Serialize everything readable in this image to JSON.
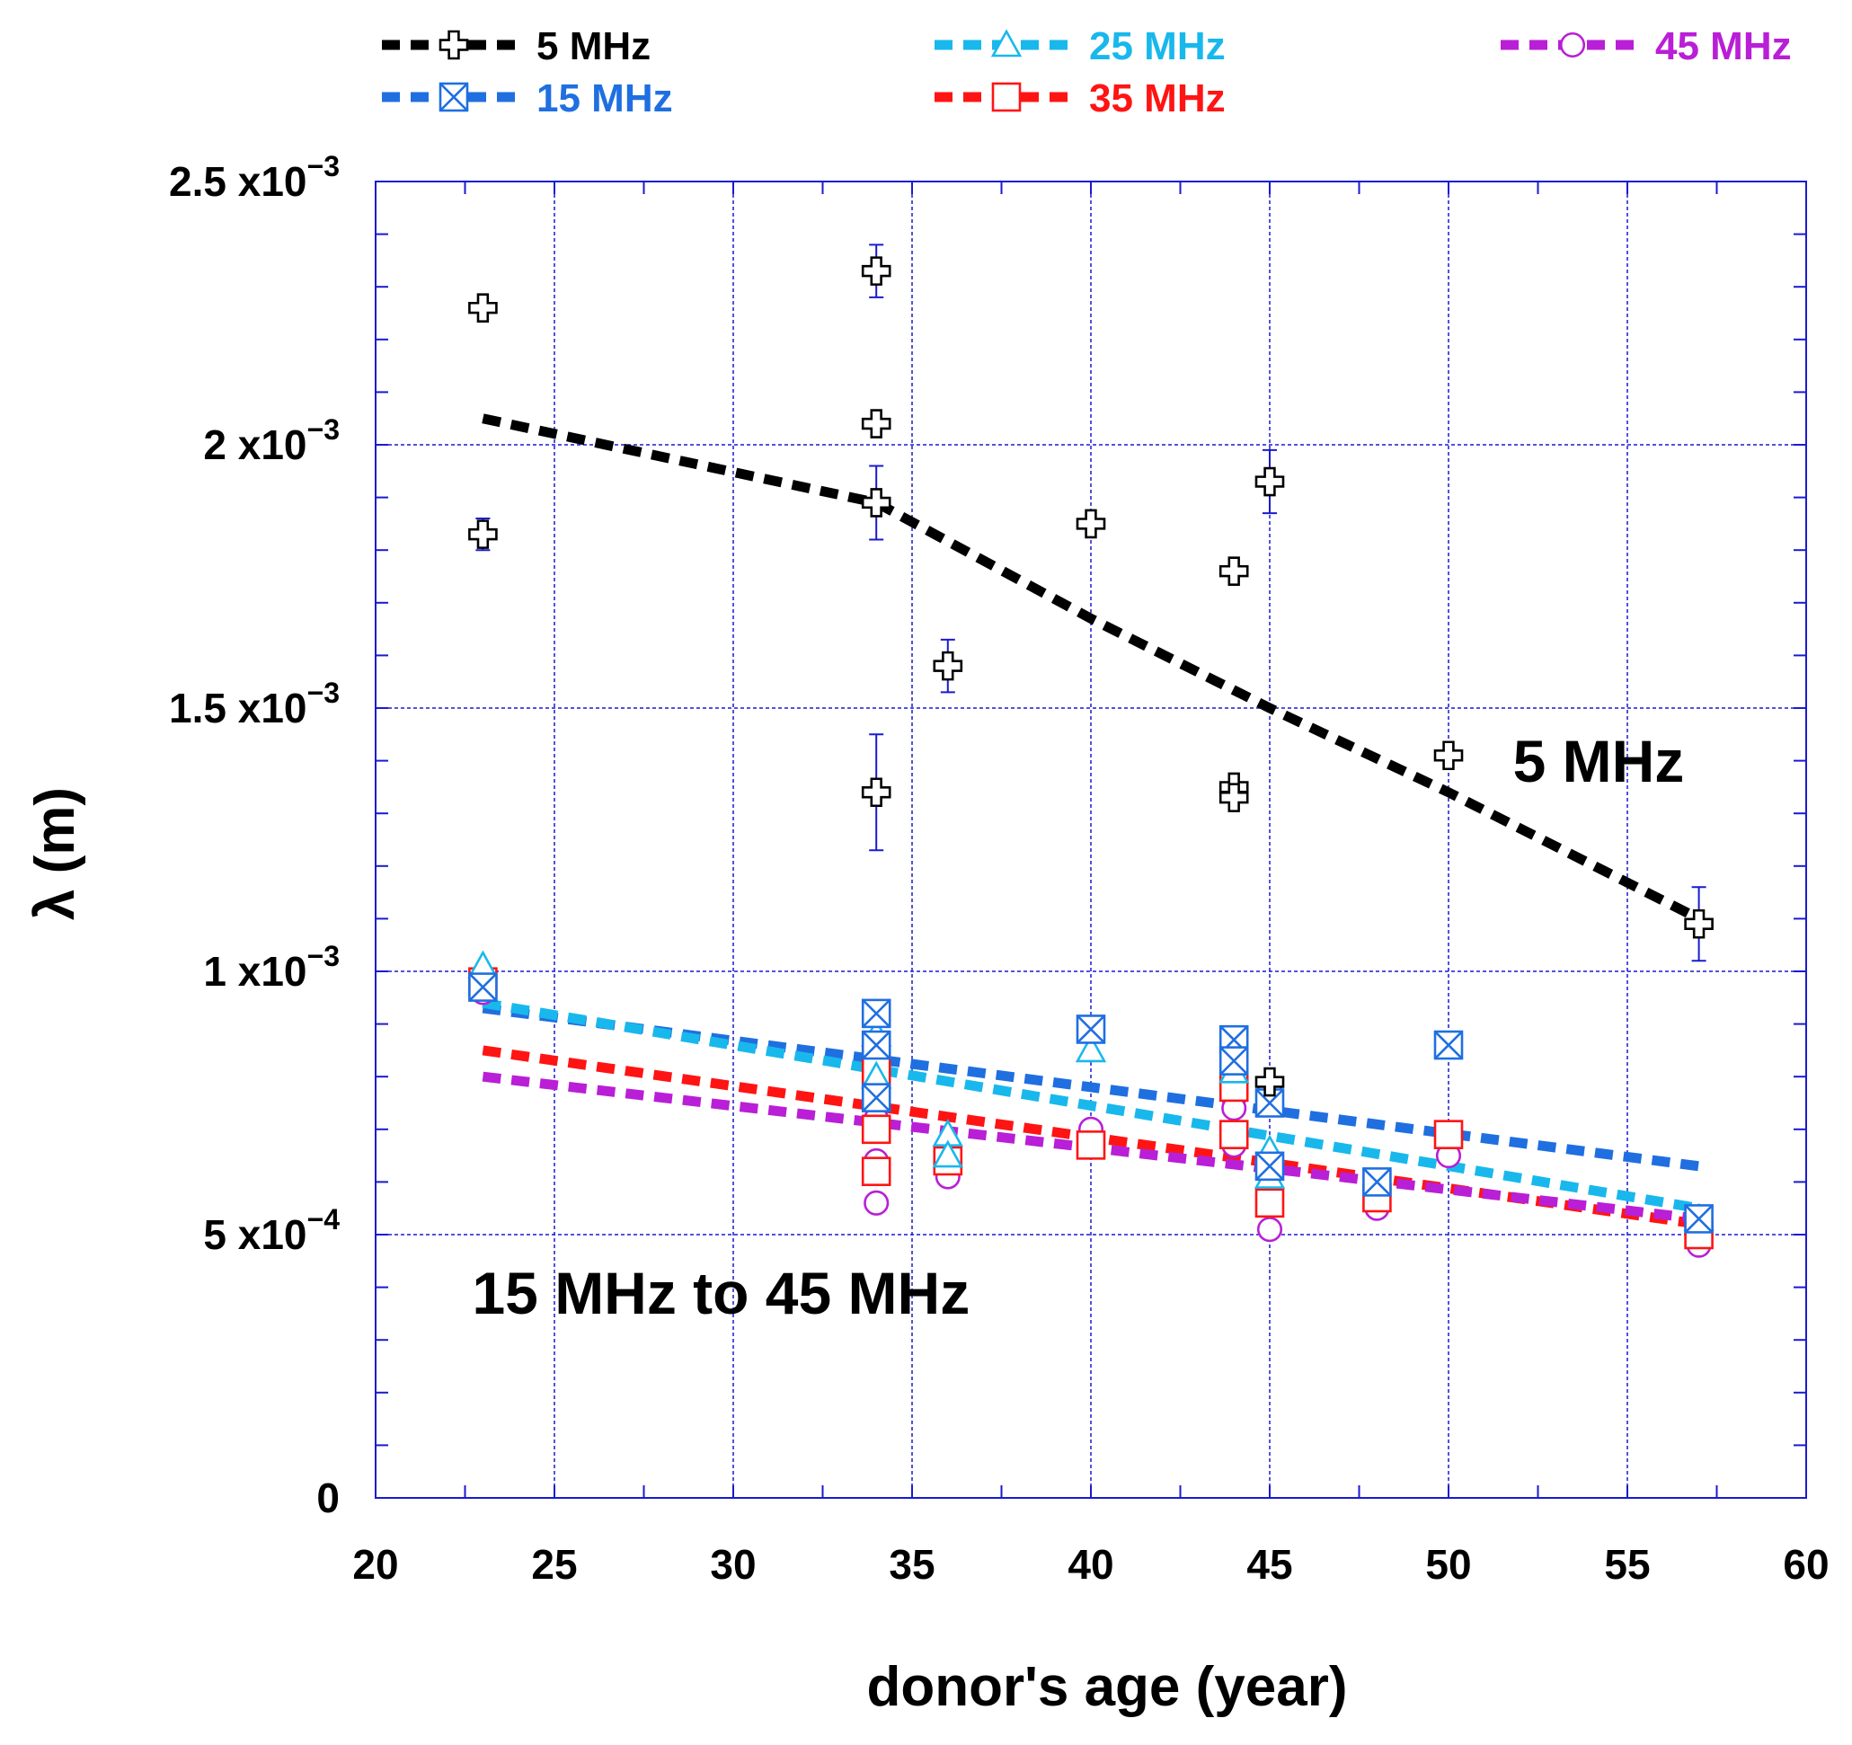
{
  "chart_data": {
    "type": "scatter",
    "title": "",
    "xlabel": "donor's age (year)",
    "ylabel": "λ (m)",
    "xlim": [
      20,
      60
    ],
    "ylim": [
      0,
      0.0025
    ],
    "grid": true,
    "legend_placement": "top",
    "x_ticks": [
      {
        "value": 20,
        "label": "20"
      },
      {
        "value": 25,
        "label": "25"
      },
      {
        "value": 30,
        "label": "30"
      },
      {
        "value": 35,
        "label": "35"
      },
      {
        "value": 40,
        "label": "40"
      },
      {
        "value": 45,
        "label": "45"
      },
      {
        "value": 50,
        "label": "50"
      },
      {
        "value": 55,
        "label": "55"
      },
      {
        "value": 60,
        "label": "60"
      }
    ],
    "y_ticks": [
      {
        "value": 0,
        "base": "0",
        "exp": ""
      },
      {
        "value": 0.0005,
        "base": "5 x10",
        "exp": "−4"
      },
      {
        "value": 0.001,
        "base": "1 x10",
        "exp": "−3"
      },
      {
        "value": 0.0015,
        "base": "1.5 x10",
        "exp": "−3"
      },
      {
        "value": 0.002,
        "base": "2 x10",
        "exp": "−3"
      },
      {
        "value": 0.0025,
        "base": "2.5 x10",
        "exp": "−3"
      }
    ],
    "annotations": [
      {
        "text": "5 MHz",
        "x": 51.8,
        "y": 0.00136
      },
      {
        "text": "15 MHz to 45 MHz",
        "x": 22.7,
        "y": 0.00035
      }
    ],
    "series": [
      {
        "name": "5 MHz",
        "color": "#000000",
        "marker": "plus",
        "points": [
          {
            "x": 23,
            "y": 0.00226
          },
          {
            "x": 23,
            "y": 0.00183,
            "err": 3e-05
          },
          {
            "x": 34,
            "y": 0.00233,
            "err": 5e-05
          },
          {
            "x": 34,
            "y": 0.00204
          },
          {
            "x": 34,
            "y": 0.00189,
            "err": 7e-05
          },
          {
            "x": 34,
            "y": 0.00134,
            "err": 0.00011
          },
          {
            "x": 36,
            "y": 0.00158,
            "err": 5e-05
          },
          {
            "x": 40,
            "y": 0.00185
          },
          {
            "x": 44,
            "y": 0.00176
          },
          {
            "x": 44,
            "y": 0.00135
          },
          {
            "x": 44,
            "y": 0.00133
          },
          {
            "x": 45,
            "y": 0.00193,
            "err": 6e-05
          },
          {
            "x": 45,
            "y": 0.00079
          },
          {
            "x": 50,
            "y": 0.00141
          },
          {
            "x": 57,
            "y": 0.00109,
            "err": 7e-05
          }
        ],
        "fit": [
          {
            "x": 23,
            "y": 0.00205
          },
          {
            "x": 34,
            "y": 0.00189
          },
          {
            "x": 40,
            "y": 0.00167
          },
          {
            "x": 45,
            "y": 0.0015
          },
          {
            "x": 50,
            "y": 0.00134
          },
          {
            "x": 57,
            "y": 0.0011
          }
        ]
      },
      {
        "name": "15 MHz",
        "color": "#1f6fe0",
        "marker": "boxx",
        "points": [
          {
            "x": 23,
            "y": 0.00097
          },
          {
            "x": 34,
            "y": 0.00092
          },
          {
            "x": 34,
            "y": 0.00086
          },
          {
            "x": 34,
            "y": 0.00076
          },
          {
            "x": 40,
            "y": 0.00089
          },
          {
            "x": 44,
            "y": 0.00087
          },
          {
            "x": 44,
            "y": 0.00083
          },
          {
            "x": 45,
            "y": 0.00075
          },
          {
            "x": 45,
            "y": 0.00063
          },
          {
            "x": 48,
            "y": 0.0006
          },
          {
            "x": 50,
            "y": 0.00086
          },
          {
            "x": 57,
            "y": 0.00053
          }
        ],
        "fit": [
          {
            "x": 23,
            "y": 0.00093
          },
          {
            "x": 57,
            "y": 0.00063
          }
        ]
      },
      {
        "name": "25 MHz",
        "color": "#19b8ec",
        "marker": "triangle",
        "points": [
          {
            "x": 23,
            "y": 0.00101
          },
          {
            "x": 34,
            "y": 0.00088
          },
          {
            "x": 34,
            "y": 0.0008
          },
          {
            "x": 36,
            "y": 0.00069
          },
          {
            "x": 36,
            "y": 0.00065
          },
          {
            "x": 40,
            "y": 0.00085
          },
          {
            "x": 44,
            "y": 0.00081
          },
          {
            "x": 45,
            "y": 0.00066
          },
          {
            "x": 45,
            "y": 0.00061
          },
          {
            "x": 57,
            "y": 0.00053
          }
        ],
        "fit": [
          {
            "x": 23,
            "y": 0.00094
          },
          {
            "x": 57,
            "y": 0.00055
          }
        ]
      },
      {
        "name": "35 MHz",
        "color": "#ff1414",
        "marker": "square",
        "points": [
          {
            "x": 23,
            "y": 0.00098
          },
          {
            "x": 34,
            "y": 0.00081
          },
          {
            "x": 34,
            "y": 0.0007
          },
          {
            "x": 34,
            "y": 0.00062
          },
          {
            "x": 36,
            "y": 0.00064
          },
          {
            "x": 40,
            "y": 0.00067
          },
          {
            "x": 44,
            "y": 0.00078
          },
          {
            "x": 44,
            "y": 0.00069
          },
          {
            "x": 45,
            "y": 0.00056
          },
          {
            "x": 48,
            "y": 0.00057
          },
          {
            "x": 50,
            "y": 0.00069
          },
          {
            "x": 57,
            "y": 0.0005
          }
        ],
        "fit": [
          {
            "x": 23,
            "y": 0.00085
          },
          {
            "x": 57,
            "y": 0.00052
          }
        ]
      },
      {
        "name": "45 MHz",
        "color": "#b91fd6",
        "marker": "circle",
        "points": [
          {
            "x": 23,
            "y": 0.00096
          },
          {
            "x": 34,
            "y": 0.00072
          },
          {
            "x": 34,
            "y": 0.00064
          },
          {
            "x": 34,
            "y": 0.00056
          },
          {
            "x": 36,
            "y": 0.00061
          },
          {
            "x": 40,
            "y": 0.0007
          },
          {
            "x": 44,
            "y": 0.00076
          },
          {
            "x": 44,
            "y": 0.00074
          },
          {
            "x": 44,
            "y": 0.00067
          },
          {
            "x": 45,
            "y": 0.00078
          },
          {
            "x": 45,
            "y": 0.00051
          },
          {
            "x": 48,
            "y": 0.00055
          },
          {
            "x": 50,
            "y": 0.00065
          },
          {
            "x": 57,
            "y": 0.00048
          }
        ],
        "fit": [
          {
            "x": 23,
            "y": 0.0008
          },
          {
            "x": 57,
            "y": 0.00053
          }
        ]
      }
    ]
  }
}
